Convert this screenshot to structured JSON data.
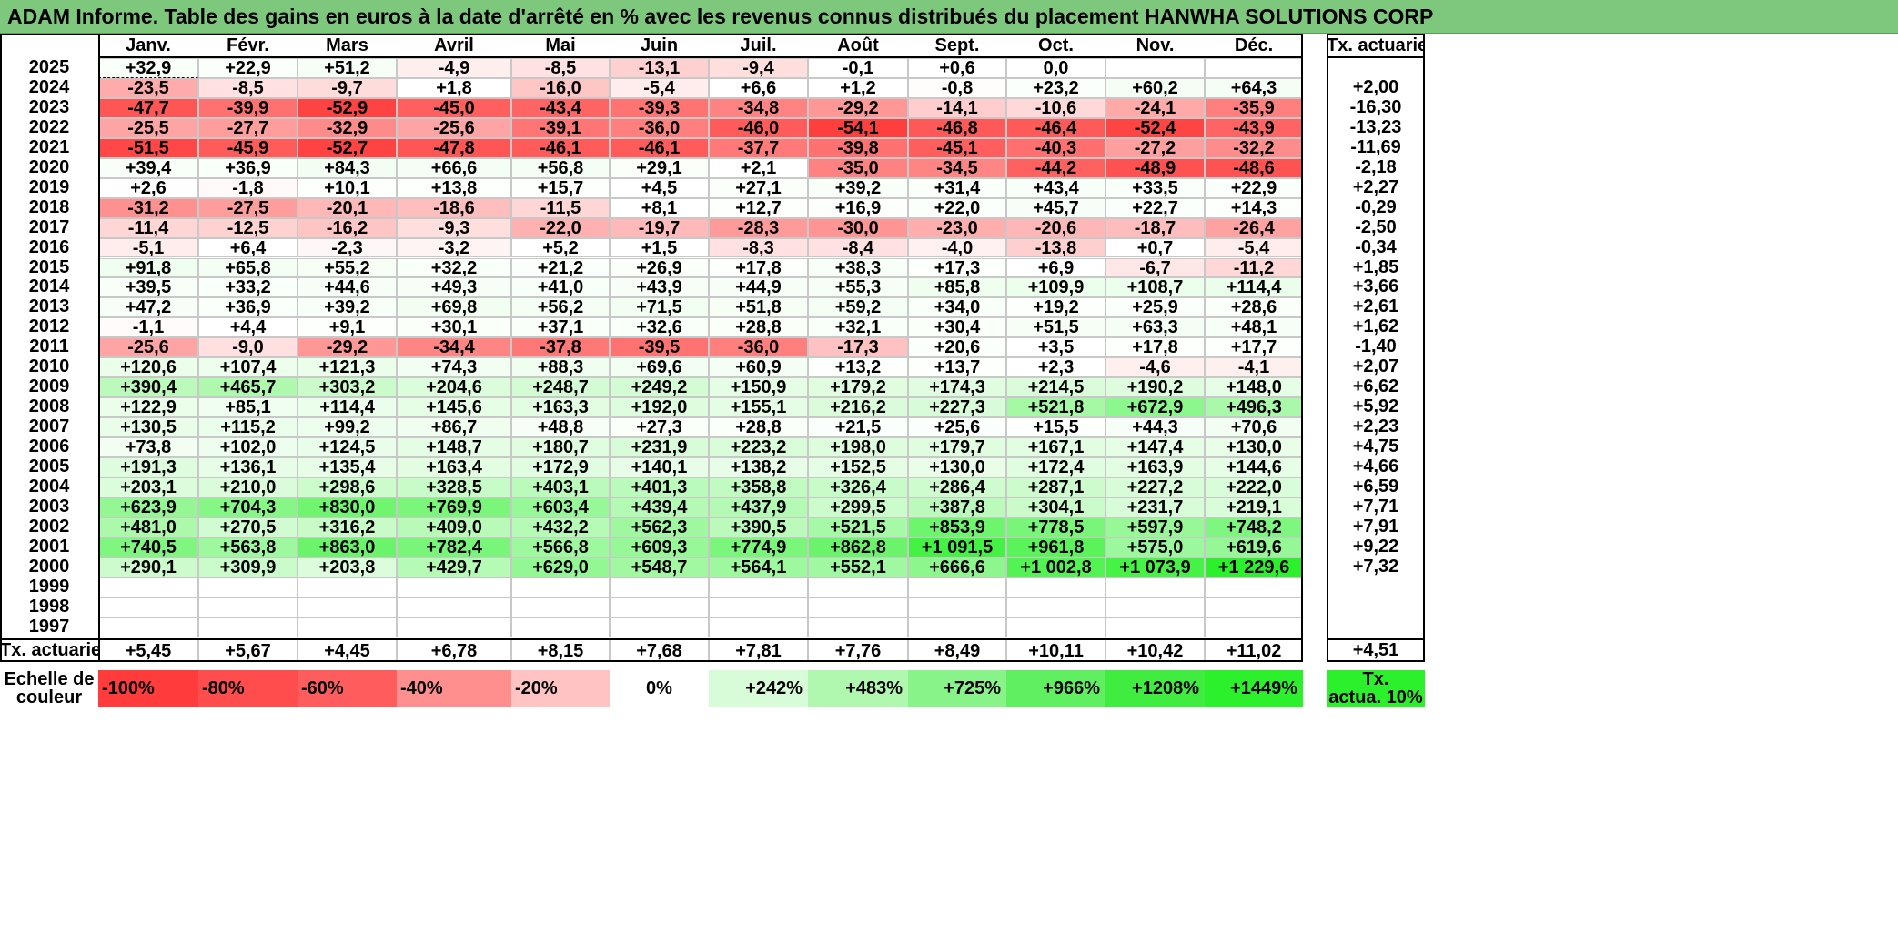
{
  "title": "ADAM Informe. Table des gains en euros à la date d'arrêté en % avec les revenus connus distribués du placement HANWHA SOLUTIONS CORP",
  "colors": {
    "title_bg": "#7dc87d",
    "grid_line": "#c8c8c8",
    "neg_max": "#ff3b3b",
    "pos_max": "#2cf02c"
  },
  "chart_data": {
    "type": "heatmap",
    "title": "ADAM Informe. Table des gains en euros à la date d'arrêté en % avec les revenus connus distribués du placement HANWHA SOLUTIONS CORP",
    "months": [
      "Janv.",
      "Févr.",
      "Mars",
      "Avril",
      "Mai",
      "Juin",
      "Juil.",
      "Août",
      "Sept.",
      "Oct.",
      "Nov.",
      "Déc."
    ],
    "rate_header": "Tx. actuariel",
    "rows": [
      {
        "year": "2025",
        "values": [
          "+32,9",
          "+22,9",
          "+51,2",
          "-4,9",
          "-8,5",
          "-13,1",
          "-9,4",
          "-0,1",
          "+0,6",
          "0,0",
          "",
          ""
        ],
        "rate": ""
      },
      {
        "year": "2024",
        "values": [
          "-23,5",
          "-8,5",
          "-9,7",
          "+1,8",
          "-16,0",
          "-5,4",
          "+6,6",
          "+1,2",
          "-0,8",
          "+23,2",
          "+60,2",
          "+64,3"
        ],
        "rate": "+2,00"
      },
      {
        "year": "2023",
        "values": [
          "-47,7",
          "-39,9",
          "-52,9",
          "-45,0",
          "-43,4",
          "-39,3",
          "-34,8",
          "-29,2",
          "-14,1",
          "-10,6",
          "-24,1",
          "-35,9"
        ],
        "rate": "-16,30"
      },
      {
        "year": "2022",
        "values": [
          "-25,5",
          "-27,7",
          "-32,9",
          "-25,6",
          "-39,1",
          "-36,0",
          "-46,0",
          "-54,1",
          "-46,8",
          "-46,4",
          "-52,4",
          "-43,9"
        ],
        "rate": "-13,23"
      },
      {
        "year": "2021",
        "values": [
          "-51,5",
          "-45,9",
          "-52,7",
          "-47,8",
          "-46,1",
          "-46,1",
          "-37,7",
          "-39,8",
          "-45,1",
          "-40,3",
          "-27,2",
          "-32,2"
        ],
        "rate": "-11,69"
      },
      {
        "year": "2020",
        "values": [
          "+39,4",
          "+36,9",
          "+84,3",
          "+66,6",
          "+56,8",
          "+29,1",
          "+2,1",
          "-35,0",
          "-34,5",
          "-44,2",
          "-48,9",
          "-48,6"
        ],
        "rate": "-2,18"
      },
      {
        "year": "2019",
        "values": [
          "+2,6",
          "-1,8",
          "+10,1",
          "+13,8",
          "+15,7",
          "+4,5",
          "+27,1",
          "+39,2",
          "+31,4",
          "+43,4",
          "+33,5",
          "+22,9"
        ],
        "rate": "+2,27"
      },
      {
        "year": "2018",
        "values": [
          "-31,2",
          "-27,5",
          "-20,1",
          "-18,6",
          "-11,5",
          "+8,1",
          "+12,7",
          "+16,9",
          "+22,0",
          "+45,7",
          "+22,7",
          "+14,3"
        ],
        "rate": "-0,29"
      },
      {
        "year": "2017",
        "values": [
          "-11,4",
          "-12,5",
          "-16,2",
          "-9,3",
          "-22,0",
          "-19,7",
          "-28,3",
          "-30,0",
          "-23,0",
          "-20,6",
          "-18,7",
          "-26,4"
        ],
        "rate": "-2,50"
      },
      {
        "year": "2016",
        "values": [
          "-5,1",
          "+6,4",
          "-2,3",
          "-3,2",
          "+5,2",
          "+1,5",
          "-8,3",
          "-8,4",
          "-4,0",
          "-13,8",
          "+0,7",
          "-5,4"
        ],
        "rate": "-0,34"
      },
      {
        "year": "2015",
        "values": [
          "+91,8",
          "+65,8",
          "+55,2",
          "+32,2",
          "+21,2",
          "+26,9",
          "+17,8",
          "+38,3",
          "+17,3",
          "+6,9",
          "-6,7",
          "-11,2"
        ],
        "rate": "+1,85"
      },
      {
        "year": "2014",
        "values": [
          "+39,5",
          "+33,2",
          "+44,6",
          "+49,3",
          "+41,0",
          "+43,9",
          "+44,9",
          "+55,3",
          "+85,8",
          "+109,9",
          "+108,7",
          "+114,4"
        ],
        "rate": "+3,66"
      },
      {
        "year": "2013",
        "values": [
          "+47,2",
          "+36,9",
          "+39,2",
          "+69,8",
          "+56,2",
          "+71,5",
          "+51,8",
          "+59,2",
          "+34,0",
          "+19,2",
          "+25,9",
          "+28,6"
        ],
        "rate": "+2,61"
      },
      {
        "year": "2012",
        "values": [
          "-1,1",
          "+4,4",
          "+9,1",
          "+30,1",
          "+37,1",
          "+32,6",
          "+28,8",
          "+32,1",
          "+30,4",
          "+51,5",
          "+63,3",
          "+48,1"
        ],
        "rate": "+1,62"
      },
      {
        "year": "2011",
        "values": [
          "-25,6",
          "-9,0",
          "-29,2",
          "-34,4",
          "-37,8",
          "-39,5",
          "-36,0",
          "-17,3",
          "+20,6",
          "+3,5",
          "+17,8",
          "+17,7"
        ],
        "rate": "-1,40"
      },
      {
        "year": "2010",
        "values": [
          "+120,6",
          "+107,4",
          "+121,3",
          "+74,3",
          "+88,3",
          "+69,6",
          "+60,9",
          "+13,2",
          "+13,7",
          "+2,3",
          "-4,6",
          "-4,1"
        ],
        "rate": "+2,07"
      },
      {
        "year": "2009",
        "values": [
          "+390,4",
          "+465,7",
          "+303,2",
          "+204,6",
          "+248,7",
          "+249,2",
          "+150,9",
          "+179,2",
          "+174,3",
          "+214,5",
          "+190,2",
          "+148,0"
        ],
        "rate": "+6,62"
      },
      {
        "year": "2008",
        "values": [
          "+122,9",
          "+85,1",
          "+114,4",
          "+145,6",
          "+163,3",
          "+192,0",
          "+155,1",
          "+216,2",
          "+227,3",
          "+521,8",
          "+672,9",
          "+496,3"
        ],
        "rate": "+5,92"
      },
      {
        "year": "2007",
        "values": [
          "+130,5",
          "+115,2",
          "+99,2",
          "+86,7",
          "+48,8",
          "+27,3",
          "+28,8",
          "+21,5",
          "+25,6",
          "+15,5",
          "+44,3",
          "+70,6"
        ],
        "rate": "+2,23"
      },
      {
        "year": "2006",
        "values": [
          "+73,8",
          "+102,0",
          "+124,5",
          "+148,7",
          "+180,7",
          "+231,9",
          "+223,2",
          "+198,0",
          "+179,7",
          "+167,1",
          "+147,4",
          "+130,0"
        ],
        "rate": "+4,75"
      },
      {
        "year": "2005",
        "values": [
          "+191,3",
          "+136,1",
          "+135,4",
          "+163,4",
          "+172,9",
          "+140,1",
          "+138,2",
          "+152,5",
          "+130,0",
          "+172,4",
          "+163,9",
          "+144,6"
        ],
        "rate": "+4,66"
      },
      {
        "year": "2004",
        "values": [
          "+203,1",
          "+210,0",
          "+298,6",
          "+328,5",
          "+403,1",
          "+401,3",
          "+358,8",
          "+326,4",
          "+286,4",
          "+287,1",
          "+227,2",
          "+222,0"
        ],
        "rate": "+6,59"
      },
      {
        "year": "2003",
        "values": [
          "+623,9",
          "+704,3",
          "+830,0",
          "+769,9",
          "+603,4",
          "+439,4",
          "+437,9",
          "+299,5",
          "+387,8",
          "+304,1",
          "+231,7",
          "+219,1"
        ],
        "rate": "+7,71"
      },
      {
        "year": "2002",
        "values": [
          "+481,0",
          "+270,5",
          "+316,2",
          "+409,0",
          "+432,2",
          "+562,3",
          "+390,5",
          "+521,5",
          "+853,9",
          "+778,5",
          "+597,9",
          "+748,2"
        ],
        "rate": "+7,91"
      },
      {
        "year": "2001",
        "values": [
          "+740,5",
          "+563,8",
          "+863,0",
          "+782,4",
          "+566,8",
          "+609,3",
          "+774,9",
          "+862,8",
          "+1 091,5",
          "+961,8",
          "+575,0",
          "+619,6"
        ],
        "rate": "+9,22"
      },
      {
        "year": "2000",
        "values": [
          "+290,1",
          "+309,9",
          "+203,8",
          "+429,7",
          "+629,0",
          "+548,7",
          "+564,1",
          "+552,1",
          "+666,6",
          "+1 002,8",
          "+1 073,9",
          "+1 229,6"
        ],
        "rate": "+7,32"
      },
      {
        "year": "1999",
        "values": [
          "",
          "",
          "",
          "",
          "",
          "",
          "",
          "",
          "",
          "",
          "",
          ""
        ],
        "rate": ""
      },
      {
        "year": "1998",
        "values": [
          "",
          "",
          "",
          "",
          "",
          "",
          "",
          "",
          "",
          "",
          "",
          ""
        ],
        "rate": ""
      },
      {
        "year": "1997",
        "values": [
          "",
          "",
          "",
          "",
          "",
          "",
          "",
          "",
          "",
          "",
          "",
          ""
        ],
        "rate": ""
      }
    ],
    "summary": {
      "label": "Tx. actuariel",
      "values": [
        "+5,45",
        "+5,67",
        "+4,45",
        "+6,78",
        "+8,15",
        "+7,68",
        "+7,81",
        "+7,76",
        "+8,49",
        "+10,11",
        "+10,42",
        "+11,02"
      ],
      "rate": "+4,51"
    },
    "scale": {
      "label_line1": "Echelle de",
      "label_line2": "couleur",
      "items": [
        {
          "text": "-100%",
          "color": "#ff3b3b"
        },
        {
          "text": "-80%",
          "color": "#ff4d4d"
        },
        {
          "text": "-60%",
          "color": "#ff5d5d"
        },
        {
          "text": "-40%",
          "color": "#ff8f8f"
        },
        {
          "text": "-20%",
          "color": "#ffc3c3"
        },
        {
          "text": "0%",
          "color": "#ffffff"
        },
        {
          "text": "+242%",
          "color": "#d8fbd8"
        },
        {
          "text": "+483%",
          "color": "#b0f7b0"
        },
        {
          "text": "+725%",
          "color": "#88f388"
        },
        {
          "text": "+966%",
          "color": "#60ef60"
        },
        {
          "text": "+1208%",
          "color": "#3fec3f"
        },
        {
          "text": "+1449%",
          "color": "#2cf02c"
        }
      ],
      "rate_line1": "Tx.",
      "rate_line2": "actua. 10%",
      "rate_color": "#2cf02c"
    }
  }
}
